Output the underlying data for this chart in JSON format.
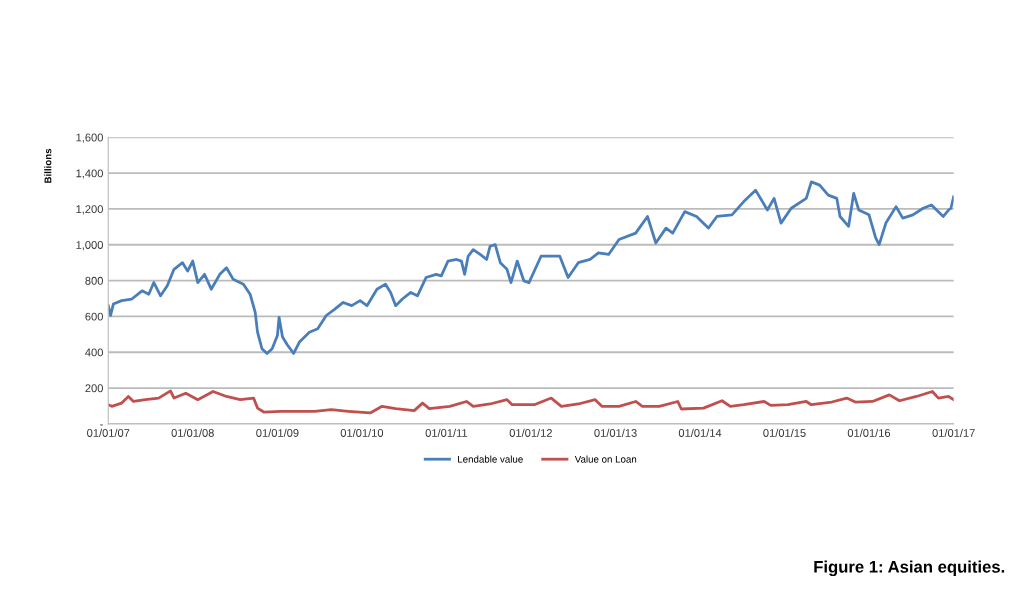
{
  "chart_data": {
    "type": "line",
    "ylabel": "Billions",
    "annotations": [
      "Figure 1: Asian equities."
    ],
    "xlim": [
      "2007-01-01",
      "2017-01-01"
    ],
    "xticks": [
      {
        "value": "2007-01-01",
        "label": "01/01/07"
      },
      {
        "value": "2008-01-01",
        "label": "01/01/08"
      },
      {
        "value": "2009-01-01",
        "label": "01/01/09"
      },
      {
        "value": "2010-01-01",
        "label": "01/01/10"
      },
      {
        "value": "2011-01-01",
        "label": "01/01/11"
      },
      {
        "value": "2012-01-01",
        "label": "01/01/12"
      },
      {
        "value": "2013-01-01",
        "label": "01/01/13"
      },
      {
        "value": "2014-01-01",
        "label": "01/01/14"
      },
      {
        "value": "2015-01-01",
        "label": "01/01/15"
      },
      {
        "value": "2016-01-01",
        "label": "01/01/16"
      },
      {
        "value": "2017-01-01",
        "label": "01/01/17"
      }
    ],
    "ylim": [
      0,
      1600
    ],
    "yticks": [
      {
        "value": 0,
        "label": "-"
      },
      200,
      400,
      600,
      800,
      {
        "value": 1000,
        "label": "1,000"
      },
      {
        "value": 1200,
        "label": "1,200"
      },
      {
        "value": 1400,
        "label": "1,400"
      },
      {
        "value": 1600,
        "label": "1,600"
      }
    ],
    "grid": "y",
    "legend": "bottom",
    "marker": "none",
    "line_style": "solid",
    "series": [
      {
        "name": "Lendable value",
        "color": "#4a7ebb",
        "x": [
          "2007-01-01",
          "2007-01-11",
          "2007-01-23",
          "2007-02-28",
          "2007-04-13",
          "2007-05-27",
          "2007-06-25",
          "2007-07-17",
          "2007-08-15",
          "2007-09-13",
          "2007-10-12",
          "2007-11-18",
          "2007-12-10",
          "2008-01-01",
          "2008-01-23",
          "2008-02-21",
          "2008-03-21",
          "2008-04-27",
          "2008-05-26",
          "2008-06-24",
          "2008-08-07",
          "2008-09-05",
          "2008-09-27",
          "2008-10-07",
          "2008-10-26",
          "2008-11-17",
          "2008-12-09",
          "2009-01-01",
          "2009-01-08",
          "2009-01-23",
          "2009-02-14",
          "2009-03-12",
          "2009-04-06",
          "2009-05-19",
          "2009-06-24",
          "2009-07-31",
          "2009-09-06",
          "2009-10-12",
          "2009-11-18",
          "2009-12-24",
          "2010-01-23",
          "2010-03-07",
          "2010-04-13",
          "2010-05-05",
          "2010-05-27",
          "2010-06-25",
          "2010-07-31",
          "2010-08-29",
          "2010-10-05",
          "2010-11-18",
          "2010-12-10",
          "2011-01-08",
          "2011-02-14",
          "2011-03-07",
          "2011-03-21",
          "2011-04-05",
          "2011-04-27",
          "2011-05-27",
          "2011-06-24",
          "2011-07-09",
          "2011-07-31",
          "2011-08-22",
          "2011-09-20",
          "2011-10-07",
          "2011-11-03",
          "2011-12-02",
          "2011-12-24",
          "2012-02-14",
          "2012-05-05",
          "2012-06-10",
          "2012-07-24",
          "2012-09-13",
          "2012-10-19",
          "2012-12-02",
          "2013-01-16",
          "2013-03-29",
          "2013-05-19",
          "2013-06-24",
          "2013-08-07",
          "2013-09-05",
          "2013-10-27",
          "2013-12-17",
          "2014-02-06",
          "2014-03-15",
          "2014-05-19",
          "2014-07-09",
          "2014-08-29",
          "2014-10-19",
          "2014-11-17",
          "2014-12-17",
          "2015-01-30",
          "2015-04-05",
          "2015-04-27",
          "2015-06-02",
          "2015-07-09",
          "2015-08-15",
          "2015-08-29",
          "2015-10-05",
          "2015-10-27",
          "2015-11-18",
          "2016-01-01",
          "2016-01-30",
          "2016-02-14",
          "2016-03-14",
          "2016-04-27",
          "2016-05-26",
          "2016-07-09",
          "2016-08-22",
          "2016-09-27",
          "2016-11-17",
          "2016-12-10",
          "2016-12-20",
          "2017-01-01"
        ],
        "values": [
          660,
          605,
          669,
          688,
          697,
          743,
          724,
          789,
          715,
          771,
          863,
          900,
          853,
          909,
          789,
          835,
          752,
          835,
          872,
          807,
          780,
          724,
          623,
          512,
          420,
          393,
          420,
          494,
          595,
          485,
          439,
          393,
          457,
          512,
          531,
          605,
          641,
          678,
          660,
          688,
          660,
          752,
          780,
          734,
          660,
          697,
          734,
          715,
          817,
          835,
          826,
          909,
          918,
          909,
          835,
          936,
          973,
          946,
          918,
          992,
          1001,
          900,
          863,
          789,
          909,
          798,
          789,
          936,
          936,
          817,
          900,
          918,
          955,
          946,
          1029,
          1065,
          1158,
          1010,
          1093,
          1065,
          1185,
          1158,
          1093,
          1158,
          1167,
          1241,
          1305,
          1194,
          1259,
          1121,
          1204,
          1259,
          1351,
          1333,
          1277,
          1259,
          1158,
          1103,
          1287,
          1194,
          1167,
          1038,
          1001,
          1121,
          1213,
          1149,
          1167,
          1204,
          1222,
          1158,
          1194,
          1204,
          1268
        ]
      },
      {
        "name": "Value on Loan",
        "color": "#c0504d",
        "x": [
          "2007-01-01",
          "2007-01-16",
          "2007-02-28",
          "2007-03-29",
          "2007-04-20",
          "2007-06-10",
          "2007-08-07",
          "2007-09-27",
          "2007-10-12",
          "2007-12-02",
          "2008-01-23",
          "2008-03-29",
          "2008-05-26",
          "2008-07-24",
          "2008-09-20",
          "2008-10-07",
          "2008-11-03",
          "2009-01-16",
          "2009-06-10",
          "2009-08-22",
          "2009-11-03",
          "2010-02-06",
          "2010-03-29",
          "2010-05-27",
          "2010-08-15",
          "2010-09-20",
          "2010-10-19",
          "2011-01-16",
          "2011-03-29",
          "2011-04-27",
          "2011-07-09",
          "2011-09-20",
          "2011-10-12",
          "2011-11-17",
          "2012-01-16",
          "2012-03-29",
          "2012-05-12",
          "2012-07-24",
          "2012-10-05",
          "2012-11-03",
          "2013-01-16",
          "2013-03-29",
          "2013-04-27",
          "2013-07-09",
          "2013-09-27",
          "2013-10-12",
          "2014-01-16",
          "2014-04-06",
          "2014-05-12",
          "2014-07-09",
          "2014-10-05",
          "2014-11-03",
          "2015-01-16",
          "2015-04-05",
          "2015-04-27",
          "2015-07-24",
          "2015-09-27",
          "2015-11-03",
          "2016-01-16",
          "2016-03-29",
          "2016-05-12",
          "2016-07-24",
          "2016-10-01",
          "2016-10-27",
          "2016-12-10",
          "2017-01-01"
        ],
        "values": [
          107,
          98,
          116,
          153,
          125,
          135,
          144,
          184,
          144,
          171,
          135,
          181,
          153,
          135,
          144,
          88,
          66,
          70,
          70,
          79,
          70,
          61,
          98,
          85,
          74,
          116,
          85,
          98,
          125,
          98,
          111,
          135,
          107,
          107,
          107,
          144,
          98,
          111,
          135,
          98,
          98,
          125,
          98,
          98,
          125,
          83,
          88,
          129,
          98,
          107,
          125,
          103,
          107,
          125,
          107,
          122,
          144,
          122,
          125,
          162,
          129,
          153,
          181,
          144,
          153,
          135
        ]
      }
    ]
  }
}
